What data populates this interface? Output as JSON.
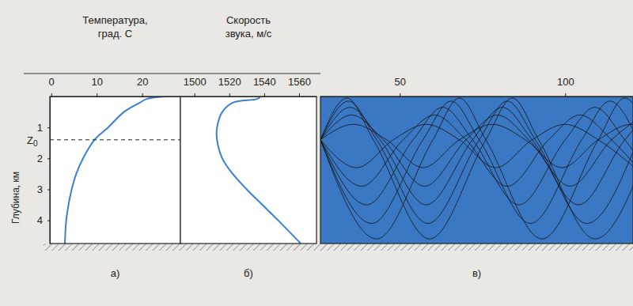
{
  "chart_data": [
    {
      "type": "line",
      "caption": "а)",
      "x_label": [
        "Температура,",
        "град. С"
      ],
      "y_label": "Глубина, км",
      "xlim": [
        -0.3,
        28.4
      ],
      "ylim": [
        0,
        4.75
      ],
      "xticks": [
        0,
        10,
        20
      ],
      "yticks": [
        1,
        2,
        3,
        4
      ],
      "annotations": [
        {
          "text": "Z",
          "sub": "0",
          "y": 1.4,
          "line_style": "dashed"
        }
      ],
      "series": [
        {
          "color": "#3a7fd5",
          "x": [
            25.5,
            21,
            19.5,
            16,
            12.5,
            9.5,
            7,
            5.5,
            4.5,
            3.8,
            3.3,
            3.0
          ],
          "values": [
            0,
            0.08,
            0.2,
            0.5,
            1.0,
            1.4,
            2.0,
            2.5,
            3.0,
            3.5,
            4.0,
            4.75
          ]
        }
      ]
    },
    {
      "type": "line",
      "caption": "б)",
      "x_label": [
        "Скорость",
        "звука, м/с"
      ],
      "xlim": [
        1492,
        1570
      ],
      "ylim": [
        0,
        4.75
      ],
      "xticks": [
        1500,
        1520,
        1540,
        1560
      ],
      "tick_labels": "x",
      "series": [
        {
          "color": "#3a7fd5",
          "x": [
            1538,
            1536,
            1522,
            1516,
            1513,
            1513,
            1516,
            1522,
            1530,
            1539,
            1548,
            1561
          ],
          "values": [
            0,
            0.08,
            0.2,
            0.5,
            1.0,
            1.4,
            2.0,
            2.5,
            3.0,
            3.5,
            4.0,
            4.75
          ]
        }
      ]
    },
    {
      "type": "line",
      "caption": "в)",
      "xlim": [
        26,
        120.5
      ],
      "ylim": [
        0,
        4.75
      ],
      "xticks": [
        50,
        100
      ],
      "tick_labels": "x",
      "color": "#111111",
      "series": [
        {
          "x": [
            26,
            37,
            48,
            58,
            68,
            79,
            90,
            100,
            110,
            121
          ],
          "values": [
            1.4,
            2.3,
            1.4,
            0.9,
            1.4,
            2.3,
            1.4,
            0.9,
            1.4,
            2.3
          ]
        },
        {
          "x": [
            26,
            36,
            46,
            57,
            68,
            78,
            88,
            99,
            110,
            120,
            130
          ],
          "values": [
            1.4,
            0.9,
            1.4,
            2.3,
            1.4,
            0.9,
            1.4,
            2.3,
            1.4,
            0.9,
            1.4
          ]
        },
        {
          "x": [
            26,
            38.5,
            51,
            60.5,
            70,
            82.5,
            95,
            104.5,
            114,
            126.5
          ],
          "values": [
            1.4,
            2.9,
            1.4,
            0.6,
            1.4,
            2.9,
            1.4,
            0.6,
            1.4,
            2.9
          ]
        },
        {
          "x": [
            26,
            35.5,
            45,
            57.5,
            70,
            79.5,
            89,
            101.5,
            114,
            123.5
          ],
          "values": [
            1.4,
            0.6,
            1.4,
            2.9,
            1.4,
            0.6,
            1.4,
            2.9,
            1.4,
            0.6
          ]
        },
        {
          "x": [
            26,
            40,
            54,
            63,
            72,
            86,
            100,
            109,
            118,
            132
          ],
          "values": [
            1.4,
            3.5,
            1.4,
            0.35,
            1.4,
            3.5,
            1.4,
            0.35,
            1.4,
            3.5
          ]
        },
        {
          "x": [
            26,
            35,
            44,
            58,
            72,
            81,
            90,
            104,
            118,
            127
          ],
          "values": [
            1.4,
            0.35,
            1.4,
            3.5,
            1.4,
            0.35,
            1.4,
            3.5,
            1.4,
            0.35
          ]
        },
        {
          "x": [
            26,
            41.5,
            57,
            65.5,
            74,
            89.5,
            105,
            113.5,
            122
          ],
          "values": [
            1.4,
            4.1,
            1.4,
            0.15,
            1.4,
            4.1,
            1.4,
            0.15,
            1.4
          ]
        },
        {
          "x": [
            26,
            34.5,
            43,
            58.5,
            74,
            82.5,
            91,
            106.5,
            122
          ],
          "values": [
            1.4,
            0.15,
            1.4,
            4.1,
            1.4,
            0.15,
            1.4,
            4.1,
            1.4
          ]
        },
        {
          "x": [
            26,
            43,
            60,
            68,
            76,
            93,
            110,
            118,
            126
          ],
          "values": [
            1.4,
            4.6,
            1.4,
            0.05,
            1.4,
            4.6,
            1.4,
            0.05,
            1.4
          ]
        },
        {
          "x": [
            26,
            34,
            42,
            59,
            76,
            84,
            92,
            109,
            126
          ],
          "values": [
            1.4,
            0.05,
            1.4,
            4.6,
            1.4,
            0.05,
            1.4,
            4.6,
            1.4
          ]
        }
      ]
    }
  ]
}
